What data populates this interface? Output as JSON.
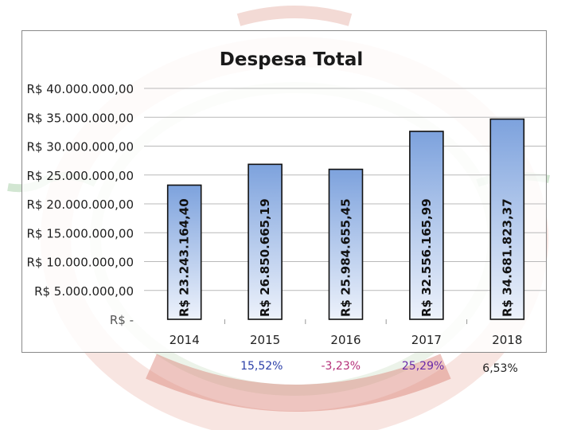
{
  "chart_data": {
    "type": "bar",
    "title": "Despesa Total",
    "xlabel": "",
    "ylabel": "",
    "categories": [
      "2014",
      "2015",
      "2016",
      "2017",
      "2018"
    ],
    "values": [
      23243164.4,
      26850665.19,
      25984655.45,
      32556165.99,
      34681823.37
    ],
    "data_labels": [
      "R$ 23.243.164,40",
      "R$ 26.850.665,19",
      "R$ 25.984.655,45",
      "R$ 32.556.165,99",
      "R$ 34.681.823,37"
    ],
    "ylim": [
      0,
      40000000
    ],
    "y_ticks": [
      0,
      5000000,
      10000000,
      15000000,
      20000000,
      25000000,
      30000000,
      35000000,
      40000000
    ],
    "y_tick_labels": [
      "R$ -",
      "R$ 5.000.000,00",
      "R$ 10.000.000,00",
      "R$ 15.000.000,00",
      "R$ 20.000.000,00",
      "R$ 25.000.000,00",
      "R$ 30.000.000,00",
      "R$ 35.000.000,00",
      "R$ 40.000.000,00"
    ],
    "grid": true,
    "legend": "none",
    "bar_color": "#a9c2ea",
    "bar_edge": "#111111"
  },
  "growth_labels": [
    {
      "text": "15,52%",
      "color": "#2b3fa8"
    },
    {
      "text": "-3,23%",
      "color": "#b5317a"
    },
    {
      "text": "25,29%",
      "color": "#6a2aa8"
    },
    {
      "text": "6,53%",
      "color": "#222222"
    }
  ]
}
